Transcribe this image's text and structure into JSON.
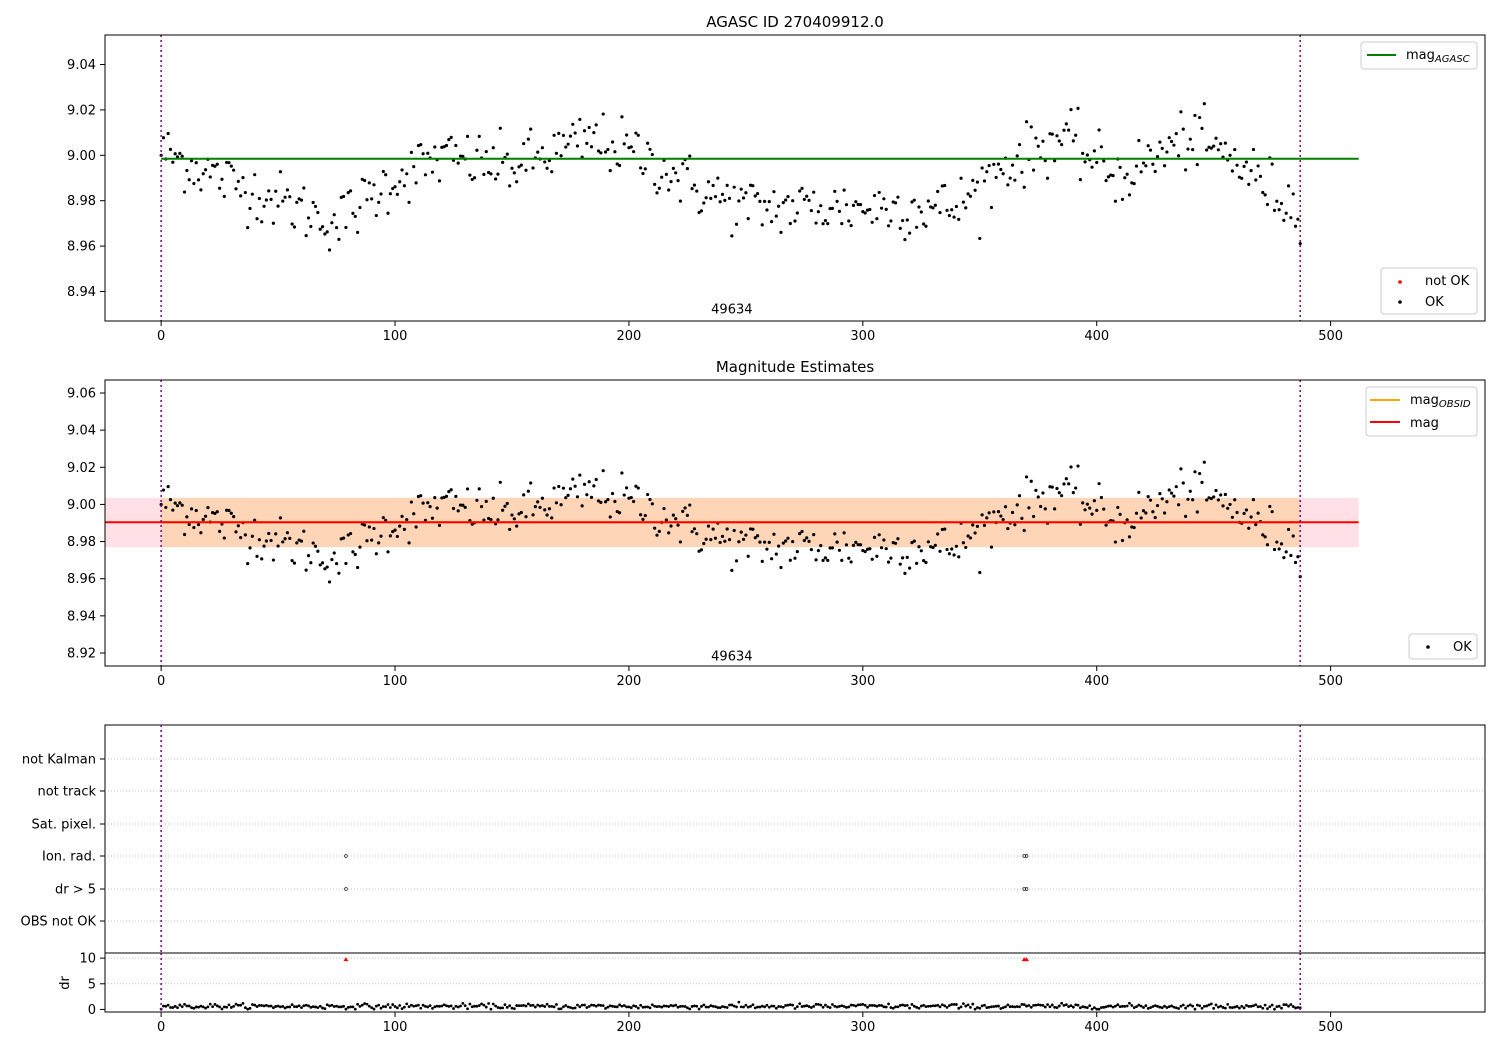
{
  "chart_data": [
    {
      "id": "top",
      "type": "scatter",
      "title": "AGASC ID 270409912.0",
      "xlim": [
        -24,
        566
      ],
      "ylim": [
        8.927,
        9.053
      ],
      "xticks": [
        "0",
        "100",
        "200",
        "300",
        "400",
        "500"
      ],
      "yticks": [
        "8.94",
        "8.96",
        "8.98",
        "9.00",
        "9.02",
        "9.04"
      ],
      "vlines": [
        0,
        487
      ],
      "hline": {
        "name": "mag",
        "sub": "AGASC",
        "value": 8.9985,
        "x": [
          0,
          512
        ],
        "color": "#008000"
      },
      "annotation": {
        "text": "49634",
        "x": 244,
        "y": 8.932
      },
      "series": [
        {
          "name": "not OK",
          "color": "#ff0000",
          "count": 0
        },
        {
          "name": "OK",
          "color": "#000000",
          "count": 488
        }
      ],
      "legend_upper": {
        "position": "upper-right"
      },
      "legend_lower": {
        "position": "lower-right"
      }
    },
    {
      "id": "mid",
      "type": "scatter",
      "title": "Magnitude Estimates",
      "xlim": [
        -24,
        566
      ],
      "ylim": [
        8.913,
        9.067
      ],
      "xticks": [
        "0",
        "100",
        "200",
        "300",
        "400",
        "500"
      ],
      "yticks": [
        "8.92",
        "8.94",
        "8.96",
        "8.98",
        "9.00",
        "9.02",
        "9.04",
        "9.06"
      ],
      "vlines": [
        0,
        487
      ],
      "band": {
        "y": [
          8.977,
          9.0035
        ],
        "x": [
          -24,
          512
        ],
        "outer_color": "#ffe0e6"
      },
      "obs_band": {
        "y": [
          8.977,
          9.0035
        ],
        "x": [
          0,
          487
        ],
        "color": "#ffd5b8"
      },
      "lines": [
        {
          "name": "mag",
          "sub": "OBSID",
          "value": 8.9904,
          "x": [
            0,
            487
          ],
          "color": "#ffa500"
        },
        {
          "name": "mag",
          "value": 8.9904,
          "x": [
            -24,
            512
          ],
          "color": "#ff0000"
        }
      ],
      "annotation": {
        "text": "49634",
        "x": 244,
        "y": 8.918
      },
      "series": [
        {
          "name": "OK",
          "color": "#000000",
          "count": 488
        }
      ],
      "legend_upper": {
        "position": "upper-right"
      },
      "legend_lower": {
        "position": "lower-right"
      }
    },
    {
      "id": "flags",
      "type": "scatter",
      "xlim": [
        -24,
        566
      ],
      "categories": [
        "not Kalman",
        "not track",
        "Sat. pixel.",
        "Ion. rad.",
        "dr > 5",
        "OBS not OK"
      ],
      "vlines": [
        0,
        487
      ],
      "points": [
        {
          "category": "Ion. rad.",
          "x": [
            79,
            369,
            370
          ]
        },
        {
          "category": "dr > 5",
          "x": [
            79,
            369,
            370
          ]
        }
      ]
    },
    {
      "id": "dr",
      "type": "scatter",
      "ylabel": "dr",
      "xlim": [
        -24,
        566
      ],
      "ylim": [
        -0.5,
        11
      ],
      "xticks": [
        "0",
        "100",
        "200",
        "300",
        "400",
        "500"
      ],
      "yticks": [
        "0",
        "5",
        "10"
      ],
      "vlines": [
        0,
        487
      ],
      "outliers": {
        "x": [
          79,
          369,
          370
        ],
        "y": 10,
        "color": "#ff0000"
      },
      "series": [
        {
          "name": "dr",
          "color": "#000000",
          "count": 488,
          "mean": 0.6
        }
      ]
    }
  ]
}
